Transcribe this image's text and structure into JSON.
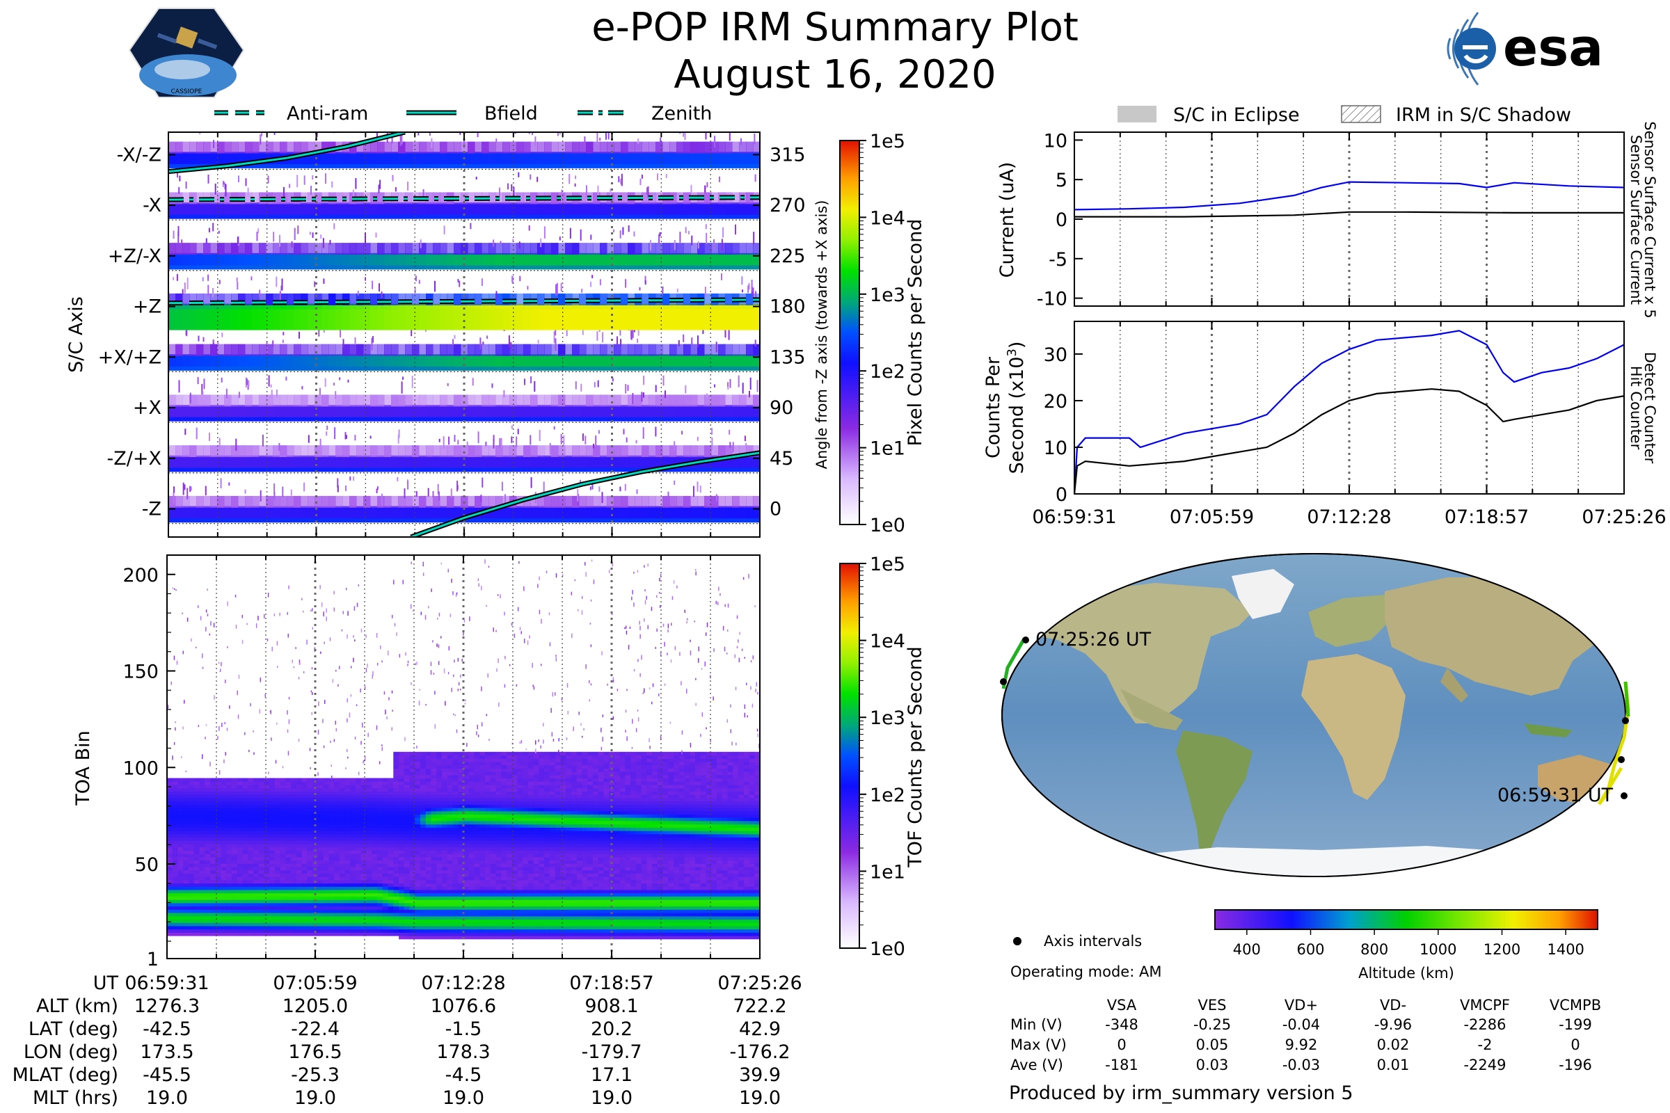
{
  "header": {
    "title": "e-POP IRM Summary Plot",
    "date": "August 16, 2020",
    "left_logo_text": "CASSIOPE",
    "right_logo_text": "esa"
  },
  "colors": {
    "line_teal": "#00d8c0",
    "black": "#000000",
    "blue": "#0000ee",
    "grid_dotted": "#555555",
    "eclipse_gray": "#c8c8c8"
  },
  "legend_top_left": [
    {
      "label": "Anti-ram",
      "style": "dashed"
    },
    {
      "label": "Bfield",
      "style": "solid"
    },
    {
      "label": "Zenith",
      "style": "dashdot"
    }
  ],
  "legend_top_right": [
    {
      "label": "S/C in Eclipse",
      "style": "filled-gray"
    },
    {
      "label": "IRM in S/C Shadow",
      "style": "hatched"
    }
  ],
  "chart_data": [
    {
      "id": "sc_axis_spectrogram",
      "type": "heatmap",
      "ylabel": "S/C Axis",
      "y_categories": [
        "-X/-Z",
        "-X",
        "+Z/-X",
        "+Z",
        "+X/+Z",
        "+X",
        "-Z/+X",
        "-Z"
      ],
      "right_ylabel": "Angle from -Z axis (towards +X axis)",
      "right_ticks": [
        315,
        270,
        225,
        180,
        135,
        90,
        45,
        0
      ],
      "right_ylim": [
        -25,
        335
      ],
      "x_ticks": [
        "06:59:31",
        "07:05:59",
        "07:12:28",
        "07:18:57",
        "07:25:26"
      ],
      "colorbar": {
        "label": "Pixel Counts per Second",
        "ticks": [
          "1e5",
          "1e4",
          "1e3",
          "1e2",
          "1e1",
          "1e0"
        ],
        "scale": "log",
        "range": [
          1,
          100000
        ]
      },
      "band_intensity_log": [
        1.3,
        0.8,
        2.0,
        3.1,
        2.0,
        0.6,
        0.7,
        0.9
      ],
      "lines": {
        "Bfield": {
          "x_frac": [
            0,
            0.1,
            0.2,
            0.3,
            0.4
          ],
          "angle_deg": [
            300,
            305,
            312,
            322,
            335
          ],
          "x_frac_late": [
            0.41,
            0.5,
            0.6,
            0.7,
            0.8,
            0.9,
            1.0
          ],
          "angle_deg_late": [
            -25,
            -8,
            8,
            22,
            33,
            42,
            50
          ]
        },
        "Anti-ram": {
          "x_frac": [
            0,
            1
          ],
          "angle_deg": [
            183,
            186
          ]
        },
        "Zenith": {
          "x_frac": [
            0,
            1
          ],
          "angle_deg": [
            275,
            277
          ]
        }
      }
    },
    {
      "id": "toa_spectrogram",
      "type": "heatmap",
      "ylabel": "TOA Bin",
      "y_ticks": [
        1,
        50,
        100,
        150,
        200
      ],
      "ylim": [
        1,
        210
      ],
      "x_ticks": [
        "06:59:31",
        "07:05:59",
        "07:12:28",
        "07:18:57",
        "07:25:26"
      ],
      "colorbar": {
        "label": "TOF Counts per Second",
        "ticks": [
          "1e5",
          "1e4",
          "1e3",
          "1e2",
          "1e1",
          "1e0"
        ],
        "scale": "log",
        "range": [
          1,
          100000
        ]
      },
      "bands": [
        {
          "x_frac": [
            0,
            0.35,
            0.42,
            1.0
          ],
          "center": [
            22,
            21,
            20,
            19
          ],
          "intensity_log": 2.8
        },
        {
          "x_frac": [
            0,
            0.35,
            0.42,
            1.0
          ],
          "center": [
            33,
            34,
            30,
            30
          ],
          "intensity_log": 3.0
        },
        {
          "x_frac": [
            0,
            0.35,
            0.42,
            1.0
          ],
          "center": [
            75,
            73,
            72,
            68
          ],
          "intensity_log": 1.4
        },
        {
          "x_frac": [
            0.38,
            0.5,
            1.0
          ],
          "center": [
            72,
            75,
            68
          ],
          "intensity_log": 2.9
        }
      ]
    },
    {
      "id": "current_plot",
      "type": "line",
      "ylabel": "Current (uA)",
      "right_labels": [
        "Sensor Surface Current x 5",
        "Sensor Surface Current"
      ],
      "y_ticks": [
        10,
        5,
        0,
        -5,
        -10
      ],
      "ylim": [
        -11,
        11
      ],
      "x_ticks": [
        "06:59:31",
        "07:05:59",
        "07:12:28",
        "07:18:57",
        "07:25:26"
      ],
      "series": [
        {
          "name": "Sensor Surface Current x 5",
          "color": "blue",
          "x_frac": [
            0,
            0.1,
            0.2,
            0.3,
            0.4,
            0.45,
            0.5,
            0.6,
            0.7,
            0.75,
            0.8,
            0.9,
            1.0
          ],
          "values": [
            1.2,
            1.3,
            1.5,
            2.0,
            3.0,
            4.0,
            4.7,
            4.6,
            4.5,
            4.0,
            4.6,
            4.2,
            4.0
          ]
        },
        {
          "name": "Sensor Surface Current",
          "color": "black",
          "x_frac": [
            0,
            0.2,
            0.4,
            0.5,
            0.6,
            0.8,
            1.0
          ],
          "values": [
            0.3,
            0.3,
            0.5,
            0.9,
            0.9,
            0.8,
            0.8
          ]
        }
      ]
    },
    {
      "id": "counts_plot",
      "type": "line",
      "ylabel": "Counts Per Second (x10³)",
      "ylabel_line1": "Counts Per",
      "ylabel_line2": "Second (x10",
      "ylabel_sup": "3",
      "ylabel_close": ")",
      "right_labels": [
        "Detect Counter",
        "Hit Counter"
      ],
      "y_ticks": [
        30,
        20,
        10,
        0
      ],
      "ylim": [
        0,
        37
      ],
      "x_ticks": [
        "06:59:31",
        "07:05:59",
        "07:12:28",
        "07:18:57",
        "07:25:26"
      ],
      "series": [
        {
          "name": "Detect Counter",
          "color": "blue",
          "x_frac": [
            0,
            0.005,
            0.02,
            0.1,
            0.12,
            0.2,
            0.3,
            0.35,
            0.4,
            0.45,
            0.5,
            0.55,
            0.6,
            0.65,
            0.7,
            0.75,
            0.78,
            0.8,
            0.85,
            0.9,
            0.95,
            1.0
          ],
          "values": [
            0,
            10,
            12,
            12,
            10,
            13,
            15,
            17,
            23,
            28,
            31,
            33,
            33.5,
            34,
            35,
            32,
            26,
            24,
            26,
            27,
            29,
            32
          ]
        },
        {
          "name": "Hit Counter",
          "color": "black",
          "x_frac": [
            0,
            0.005,
            0.02,
            0.1,
            0.2,
            0.3,
            0.35,
            0.4,
            0.45,
            0.5,
            0.55,
            0.6,
            0.65,
            0.7,
            0.75,
            0.78,
            0.8,
            0.85,
            0.9,
            0.95,
            1.0
          ],
          "values": [
            0,
            6,
            7,
            6,
            7,
            9,
            10,
            13,
            17,
            20,
            21.5,
            22,
            22.5,
            22,
            19,
            15.5,
            16,
            17,
            18,
            20,
            21
          ]
        }
      ]
    }
  ],
  "map": {
    "start_label": "06:59:31 UT",
    "end_label": "07:25:26 UT",
    "colorbar_label": "Altitude (km)",
    "colorbar_ticks": [
      400,
      600,
      800,
      1000,
      1200,
      1400
    ],
    "colorbar_range": [
      300,
      1500
    ]
  },
  "axis_intervals_label": "Axis intervals",
  "operating_mode": "Operating mode: AM",
  "voltage_table": {
    "columns": [
      "VSA",
      "VES",
      "VD+",
      "VD-",
      "VMCPF",
      "VCMPB"
    ],
    "rows": [
      {
        "label": "Min (V)",
        "values": [
          "-348",
          "-0.25",
          "-0.04",
          "-9.96",
          "-2286",
          "-199"
        ]
      },
      {
        "label": "Max (V)",
        "values": [
          "0",
          "0.05",
          "9.92",
          "0.02",
          "-2",
          "0"
        ]
      },
      {
        "label": "Ave (V)",
        "values": [
          "-181",
          "0.03",
          "-0.03",
          "0.01",
          "-2249",
          "-196"
        ]
      }
    ]
  },
  "footer": "Produced by irm_summary version 5",
  "ephemeris": {
    "row_labels": [
      "UT",
      "ALT (km)",
      "LAT (deg)",
      "LON (deg)",
      "MLAT (deg)",
      "MLT (hrs)"
    ],
    "columns": [
      [
        "06:59:31",
        "1276.3",
        "-42.5",
        "173.5",
        "-45.5",
        "19.0"
      ],
      [
        "07:05:59",
        "1205.0",
        "-22.4",
        "176.5",
        "-25.3",
        "19.0"
      ],
      [
        "07:12:28",
        "1076.6",
        "-1.5",
        "178.3",
        "-4.5",
        "19.0"
      ],
      [
        "07:18:57",
        "908.1",
        "20.2",
        "-179.7",
        "17.1",
        "19.0"
      ],
      [
        "07:25:26",
        "722.2",
        "42.9",
        "-176.2",
        "39.9",
        "19.0"
      ]
    ]
  }
}
